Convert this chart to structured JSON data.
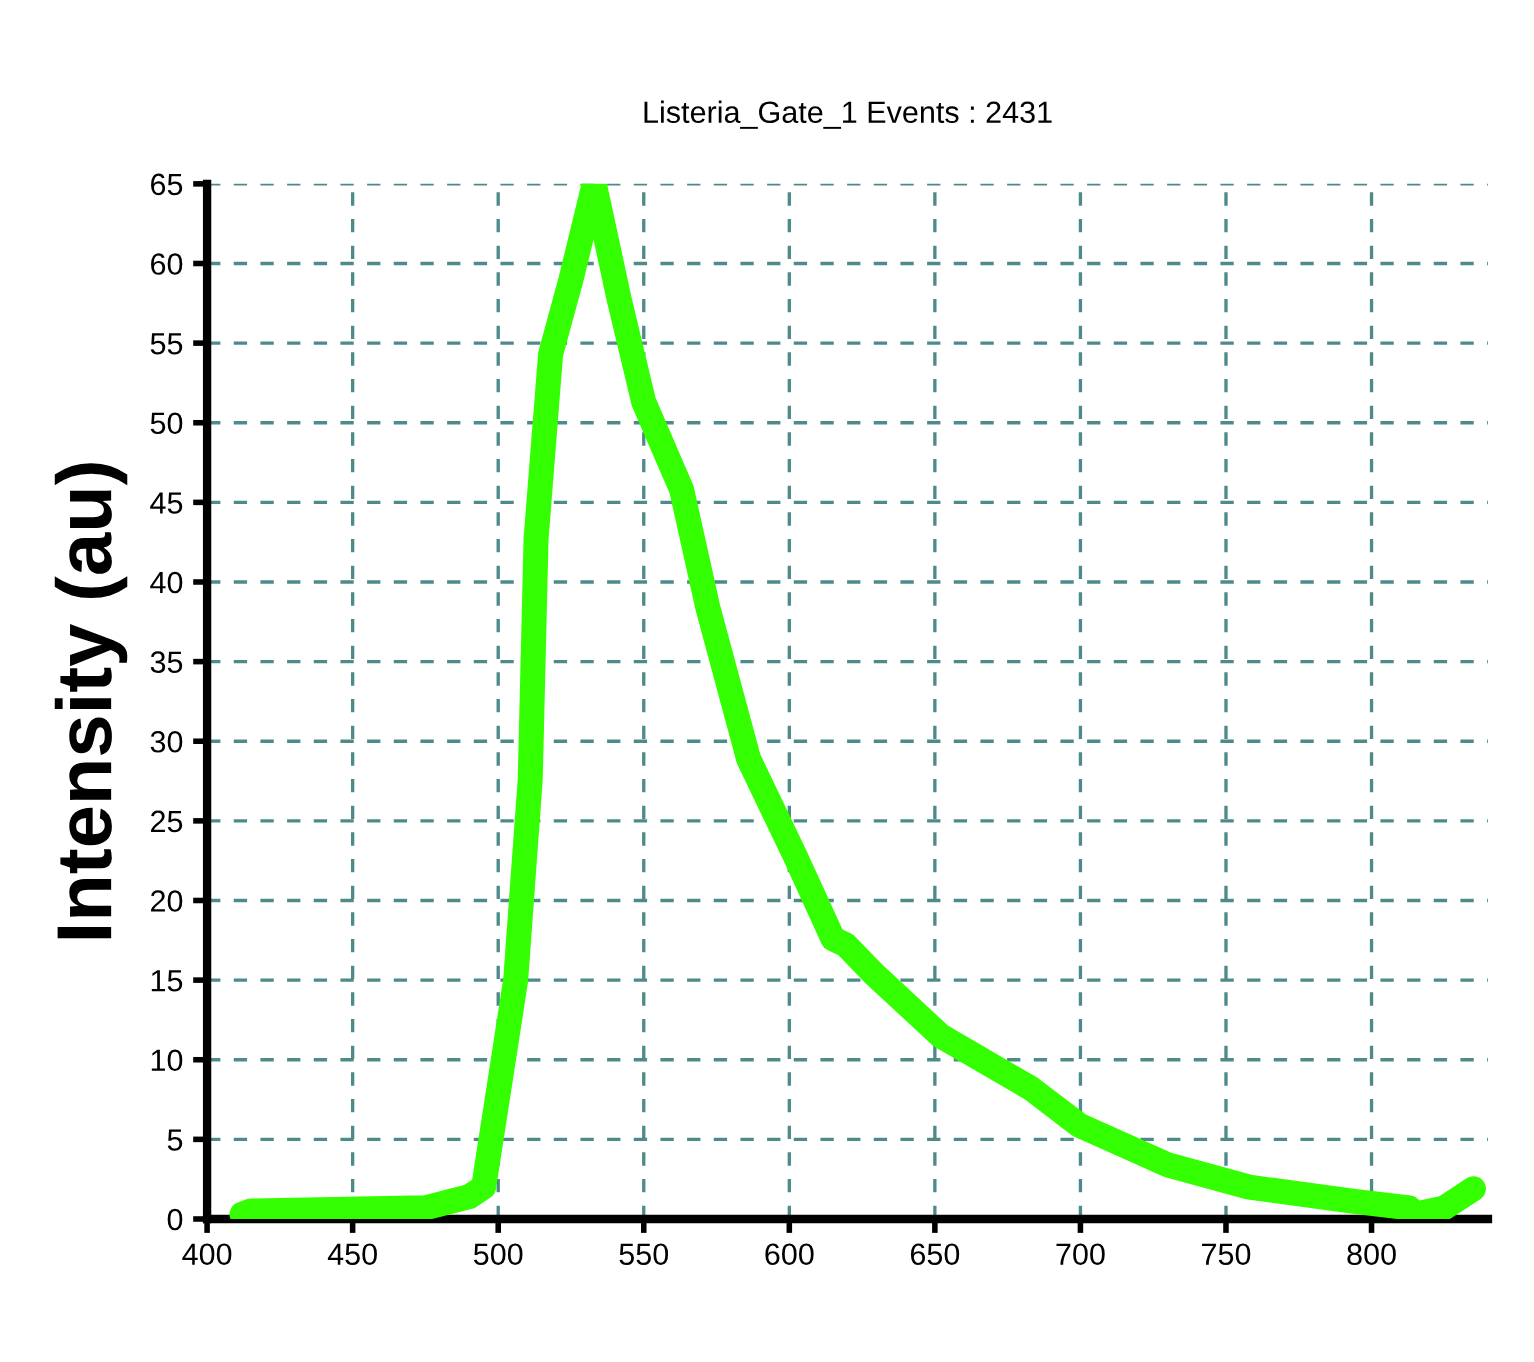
{
  "chart_data": {
    "type": "line",
    "title": "Listeria_Gate_1 Events : 2431",
    "ylabel": "Intensity (au)",
    "x": [
      412,
      415,
      475,
      490,
      495,
      506,
      511,
      513,
      518,
      525,
      533,
      541.5,
      550,
      563,
      572,
      586,
      602,
      615,
      619.5,
      629,
      652,
      683,
      699.5,
      730,
      758,
      794,
      813,
      815,
      825,
      835
    ],
    "series": [
      {
        "color": "#33ff00",
        "values": [
          0.3,
          0.5,
          0.7,
          1.4,
          2,
          15,
          27.6,
          42.7,
          54.3,
          59,
          65,
          57.8,
          51.3,
          45.8,
          38.4,
          28.9,
          22.8,
          17.6,
          17.2,
          15.4,
          11.5,
          8.2,
          5.9,
          3.4,
          2.0,
          1.1,
          0.7,
          0.3,
          0.7,
          1.9
        ]
      }
    ],
    "xlim": [
      400,
      840
    ],
    "xticks": [
      400,
      450,
      500,
      550,
      600,
      650,
      700,
      750,
      800
    ],
    "ylim": [
      0,
      65
    ],
    "yticks": [
      0,
      5,
      10,
      15,
      20,
      25,
      30,
      35,
      40,
      45,
      50,
      55,
      60,
      65
    ],
    "grid": true,
    "legend": false,
    "marker": "none",
    "line_style": "solid"
  }
}
